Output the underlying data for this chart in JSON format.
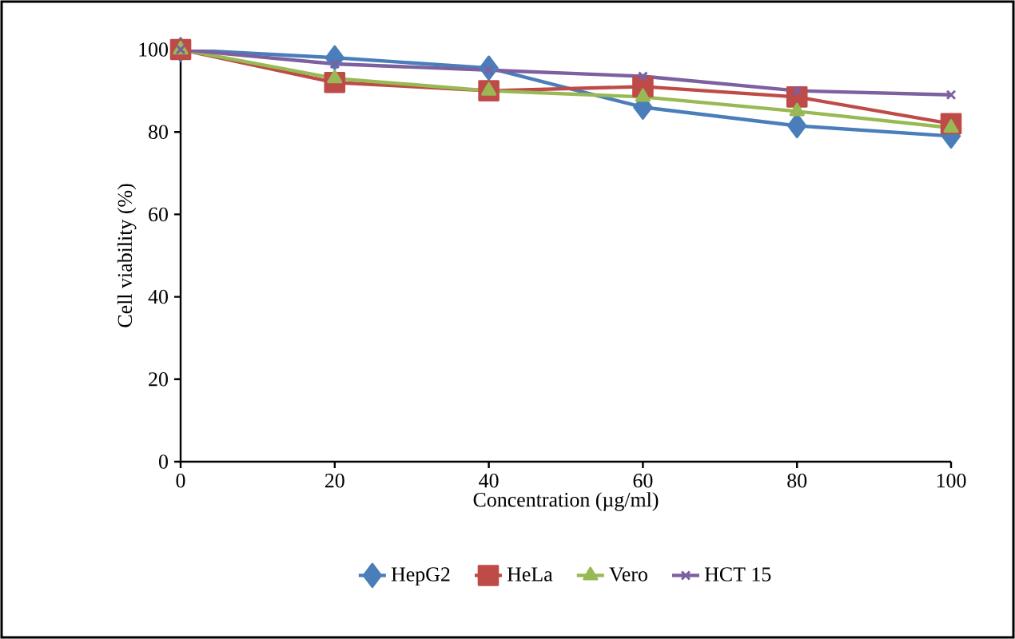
{
  "chart_data": {
    "type": "line",
    "xlabel": "Concentration (µg/ml)",
    "ylabel": "Cell viability (%)",
    "x": [
      0,
      20,
      40,
      60,
      80,
      100
    ],
    "xlim": [
      0,
      100
    ],
    "xticks": [
      0,
      20,
      40,
      60,
      80,
      100
    ],
    "ylim": [
      0,
      100
    ],
    "yticks": [
      0,
      20,
      40,
      60,
      80,
      100
    ],
    "grid": false,
    "legend": "bottom",
    "line_style": "solid",
    "series": [
      {
        "name": "HepG2",
        "color": "#4a7ebb",
        "marker": "diamond",
        "values": [
          100,
          98,
          95.5,
          86,
          81.5,
          79
        ]
      },
      {
        "name": "HeLa",
        "color": "#be4b48",
        "marker": "square",
        "values": [
          100,
          92,
          90,
          91,
          88.5,
          82
        ]
      },
      {
        "name": "Vero",
        "color": "#98b954",
        "marker": "triangle",
        "values": [
          100,
          93,
          90,
          88.5,
          85,
          81
        ]
      },
      {
        "name": "HCT 15",
        "color": "#7d60a0",
        "marker": "cross",
        "values": [
          100,
          96.5,
          95,
          93.5,
          90,
          89
        ]
      }
    ]
  }
}
